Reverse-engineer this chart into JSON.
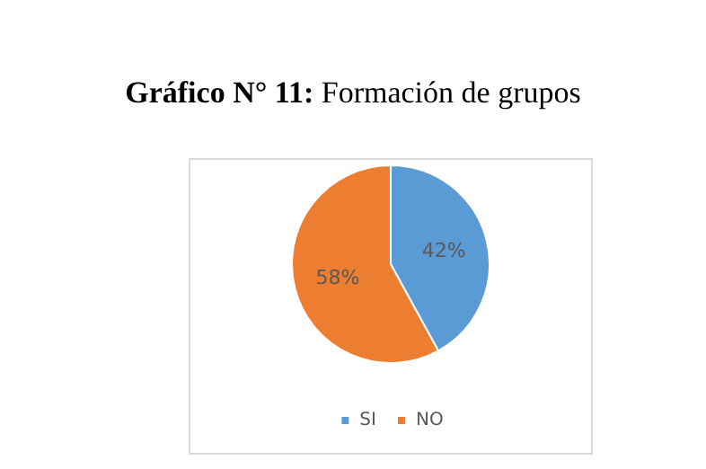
{
  "chart_data": {
    "type": "pie",
    "title": "Gráfico N° 11: Formación de grupos",
    "categories": [
      "SI",
      "NO"
    ],
    "values": [
      42,
      58
    ],
    "colors": [
      "#5b9bd5",
      "#ed7d31"
    ],
    "value_labels": [
      "42%",
      "58%"
    ],
    "legend": "bottom"
  }
}
